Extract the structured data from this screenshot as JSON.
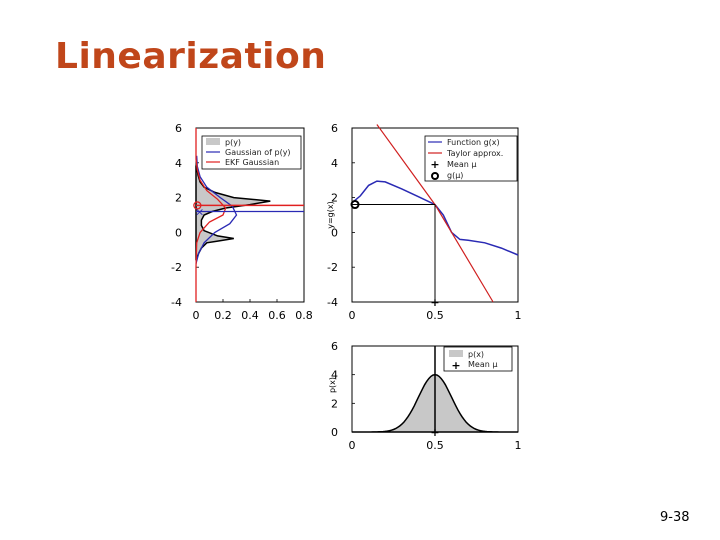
{
  "slide": {
    "title": "Linearization",
    "page_number": "9-38"
  },
  "chart_data": [
    {
      "type": "area",
      "name": "left-panel",
      "xlabel": "",
      "ylabel": "",
      "xlim": [
        0,
        0.8
      ],
      "ylim": [
        -4,
        6
      ],
      "xticks": [
        "0",
        "0.2",
        "0.4",
        "0.6",
        "0.8"
      ],
      "yticks": [
        "-4",
        "-2",
        "0",
        "2",
        "4",
        "6"
      ],
      "legend": [
        "p(y)",
        "Gaussian of p(y)",
        "EKF Gaussian"
      ],
      "legend_placement": "top-right",
      "colors": {
        "py": "#c8c8c8",
        "gaussian": "#2a2ab4",
        "ekf": "#e02020"
      },
      "series": [
        {
          "name": "p(y)",
          "points": [
            [
              0,
              -1.6
            ],
            [
              0.02,
              -1.2
            ],
            [
              0.04,
              -0.9
            ],
            [
              0.08,
              -0.6
            ],
            [
              0.16,
              -0.5
            ],
            [
              0.28,
              -0.35
            ],
            [
              0.16,
              -0.2
            ],
            [
              0.06,
              0.1
            ],
            [
              0.04,
              0.4
            ],
            [
              0.04,
              0.7
            ],
            [
              0.06,
              1.0
            ],
            [
              0.12,
              1.2
            ],
            [
              0.22,
              1.4
            ],
            [
              0.4,
              1.6
            ],
            [
              0.55,
              1.8
            ],
            [
              0.28,
              2.0
            ],
            [
              0.14,
              2.3
            ],
            [
              0.06,
              2.6
            ],
            [
              0.03,
              2.9
            ],
            [
              0.015,
              3.3
            ],
            [
              0.005,
              3.8
            ]
          ]
        },
        {
          "name": "Gaussian of p(y)",
          "points": [
            [
              0,
              -1.8
            ],
            [
              0.02,
              -1.2
            ],
            [
              0.06,
              -0.6
            ],
            [
              0.14,
              0
            ],
            [
              0.25,
              0.5
            ],
            [
              0.3,
              1
            ],
            [
              0.27,
              1.5
            ],
            [
              0.18,
              2.0
            ],
            [
              0.08,
              2.6
            ],
            [
              0.03,
              3.2
            ],
            [
              0.01,
              3.8
            ],
            [
              0.005,
              4.4
            ]
          ]
        },
        {
          "name": "EKF Gaussian",
          "points": [
            [
              0,
              -4
            ],
            [
              0,
              -2
            ],
            [
              0.005,
              -0.6
            ],
            [
              0.03,
              0
            ],
            [
              0.1,
              0.6
            ],
            [
              0.2,
              1.0
            ],
            [
              0.22,
              1.4
            ],
            [
              0.16,
              1.9
            ],
            [
              0.08,
              2.4
            ],
            [
              0.03,
              3.0
            ],
            [
              0.01,
              3.6
            ],
            [
              0,
              4.2
            ],
            [
              0,
              6
            ]
          ]
        }
      ],
      "lines": [
        {
          "color": "blue",
          "y": 1.2
        },
        {
          "color": "red",
          "y": 1.55
        }
      ]
    },
    {
      "type": "line",
      "name": "top-right-panel",
      "xlabel": "",
      "ylabel": "y=g(x)",
      "xlim": [
        0,
        1
      ],
      "ylim": [
        -4,
        6
      ],
      "xticks": [
        "0",
        "0.5",
        "1"
      ],
      "yticks": [
        "-4",
        "-2",
        "0",
        "2",
        "4",
        "6"
      ],
      "legend": [
        "Function g(x)",
        "Taylor approx.",
        "Mean μ",
        "g(μ)"
      ],
      "legend_placement": "top-right",
      "colors": {
        "function": "#2a2ab4",
        "taylor": "#d02020"
      },
      "series": [
        {
          "name": "Function g(x)",
          "points": [
            [
              0,
              1.7
            ],
            [
              0.05,
              2.1
            ],
            [
              0.1,
              2.7
            ],
            [
              0.15,
              2.95
            ],
            [
              0.2,
              2.9
            ],
            [
              0.3,
              2.5
            ],
            [
              0.4,
              2.05
            ],
            [
              0.5,
              1.6
            ],
            [
              0.55,
              1.0
            ],
            [
              0.6,
              0
            ],
            [
              0.65,
              -0.4
            ],
            [
              0.7,
              -0.45
            ],
            [
              0.8,
              -0.6
            ],
            [
              0.9,
              -0.9
            ],
            [
              1.0,
              -1.3
            ]
          ]
        },
        {
          "name": "Taylor approx.",
          "points": [
            [
              0.15,
              6.2
            ],
            [
              0.5,
              1.6
            ],
            [
              0.85,
              -4.0
            ]
          ]
        }
      ],
      "mean": {
        "x": 0.5,
        "y": 1.6
      },
      "mean_marker_y": -4,
      "g_mu_marker_y": 1.6
    },
    {
      "type": "area",
      "name": "bottom-right-panel",
      "xlabel": "",
      "ylabel": "p(x)",
      "xlim": [
        0,
        1
      ],
      "ylim": [
        0,
        6
      ],
      "xticks": [
        "0",
        "0.5",
        "1"
      ],
      "yticks": [
        "0",
        "2",
        "4",
        "6"
      ],
      "legend": [
        "p(x)",
        "Mean μ"
      ],
      "legend_placement": "top-right",
      "colors": {
        "px": "#c8c8c8"
      },
      "gaussian": {
        "mean": 0.5,
        "sigma": 0.1,
        "peak": 4.0
      },
      "mean": 0.5
    }
  ]
}
